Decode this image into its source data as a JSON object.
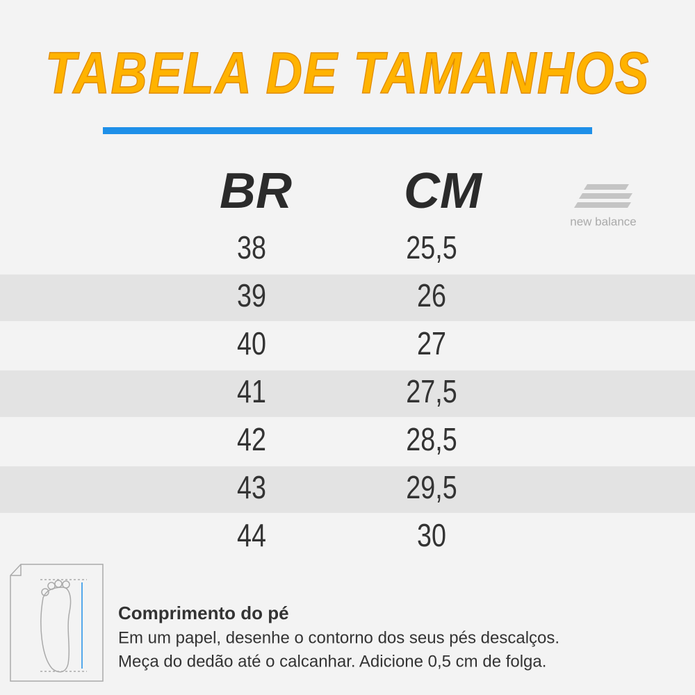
{
  "header": {
    "title": "TABELA DE TAMANHOS"
  },
  "brand": {
    "name": "new balance"
  },
  "table": {
    "columns": [
      "BR",
      "CM"
    ],
    "rows": [
      [
        "38",
        "25,5"
      ],
      [
        "39",
        "26"
      ],
      [
        "40",
        "27"
      ],
      [
        "41",
        "27,5"
      ],
      [
        "42",
        "28,5"
      ],
      [
        "43",
        "29,5"
      ],
      [
        "44",
        "30"
      ]
    ]
  },
  "instructions": {
    "heading": "Comprimento do pé",
    "lines": [
      "Em um papel, desenhe o contorno dos seus pés descalços.",
      "Meça do dedão até o calcanhar. Adicione 0,5 cm de folga."
    ]
  }
}
